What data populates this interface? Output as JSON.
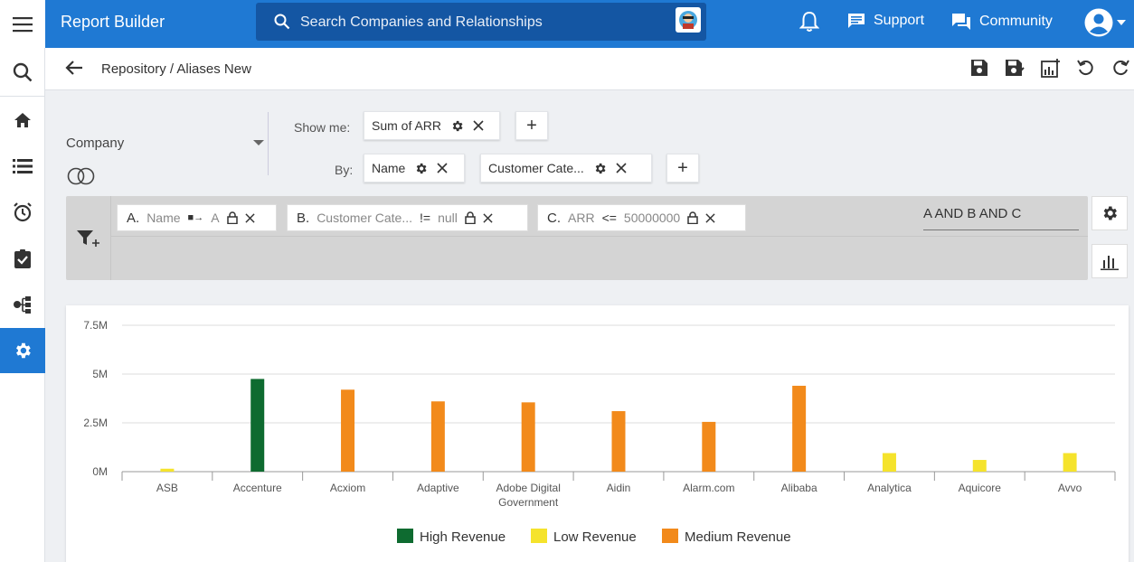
{
  "header": {
    "title": "Report Builder",
    "search_placeholder": "Search Companies and Relationships",
    "support_label": "Support",
    "community_label": "Community"
  },
  "breadcrumb": {
    "parent": "Repository",
    "separator": "/",
    "current": "Aliases New"
  },
  "config": {
    "object_label": "Company",
    "show_me_label": "Show me:",
    "by_label": "By:",
    "measure_chip": "Sum of ARR",
    "group_chips": [
      "Name",
      "Customer Cate..."
    ]
  },
  "filters": {
    "items": [
      {
        "key": "A.",
        "field": "Name",
        "operator": "A",
        "op_symbol": "■→"
      },
      {
        "key": "B.",
        "field": "Customer Cate...",
        "operator": "null",
        "op_symbol": "!="
      },
      {
        "key": "C.",
        "field": "ARR",
        "operator": "50000000",
        "op_symbol": "<="
      }
    ],
    "logic": "A AND B AND C"
  },
  "colors": {
    "brand": "#1f79d3",
    "high": "#0e6b30",
    "low": "#f5e32c",
    "medium": "#f28a1b"
  },
  "chart_data": {
    "type": "bar",
    "categories": [
      "ASB",
      "Accenture",
      "Acxiom",
      "Adaptive",
      "Adobe Digital Government",
      "Aidin",
      "Alarm.com",
      "Alibaba",
      "Analytica",
      "Aquicore",
      "Avvo"
    ],
    "category_lines": [
      [
        "ASB"
      ],
      [
        "Accenture"
      ],
      [
        "Acxiom"
      ],
      [
        "Adaptive"
      ],
      [
        "Adobe Digital",
        "Government"
      ],
      [
        "Aidin"
      ],
      [
        "Alarm.com"
      ],
      [
        "Alibaba"
      ],
      [
        "Analytica"
      ],
      [
        "Aquicore"
      ],
      [
        "Avvo"
      ]
    ],
    "series": [
      {
        "name": "High Revenue",
        "color": "#0e6b30",
        "values": [
          0,
          4750000,
          0,
          0,
          0,
          0,
          0,
          0,
          0,
          0,
          0
        ]
      },
      {
        "name": "Low Revenue",
        "color": "#f5e32c",
        "values": [
          150000,
          0,
          0,
          0,
          0,
          0,
          0,
          0,
          950000,
          600000,
          950000
        ]
      },
      {
        "name": "Medium Revenue",
        "color": "#f28a1b",
        "values": [
          0,
          0,
          4200000,
          3600000,
          3550000,
          3100000,
          2550000,
          4400000,
          0,
          0,
          0
        ]
      }
    ],
    "ylim": [
      0,
      7500000
    ],
    "yticks": [
      0,
      2500000,
      5000000,
      7500000
    ],
    "ytick_labels": [
      "0M",
      "2.5M",
      "5M",
      "7.5M"
    ],
    "legend_position": "bottom",
    "grid": true
  }
}
